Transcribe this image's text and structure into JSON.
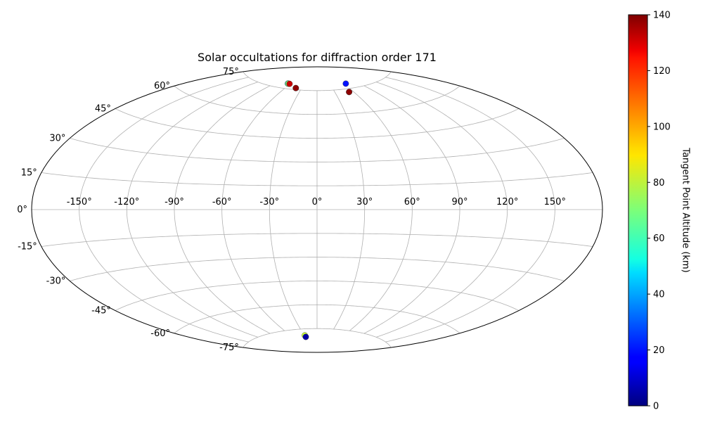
{
  "chart_data": {
    "type": "scatter",
    "projection": "aitoff",
    "title": "Solar occultations for diffraction order 171",
    "longitude_ticks": [
      "-150°",
      "-120°",
      "-90°",
      "-60°",
      "-30°",
      "0°",
      "30°",
      "60°",
      "90°",
      "120°",
      "150°"
    ],
    "latitude_ticks": [
      "75°",
      "60°",
      "45°",
      "30°",
      "15°",
      "0°",
      "-15°",
      "-30°",
      "-45°",
      "-60°",
      "-75°"
    ],
    "grid": true,
    "colorbar": {
      "label": "Tangent Point Altitude (km)",
      "colormap": "jet",
      "range": [
        0,
        140
      ],
      "ticks": [
        "0",
        "20",
        "40",
        "60",
        "80",
        "100",
        "120",
        "140"
      ]
    },
    "points": [
      {
        "lon": -66,
        "lat": 78,
        "altitude": 50
      },
      {
        "lon": -65,
        "lat": 78,
        "altitude": 70
      },
      {
        "lon": -62,
        "lat": 78,
        "altitude": 130
      },
      {
        "lon": -41,
        "lat": 76,
        "altitude": 100
      },
      {
        "lon": -41,
        "lat": 76,
        "altitude": 138
      },
      {
        "lon": 53,
        "lat": 73,
        "altitude": 60
      },
      {
        "lon": 53,
        "lat": 73,
        "altitude": 138
      },
      {
        "lon": 65,
        "lat": 78,
        "altitude": 20
      },
      {
        "lon": -29,
        "lat": -79,
        "altitude": 80
      },
      {
        "lon": -29,
        "lat": -80,
        "altitude": 5
      }
    ]
  }
}
